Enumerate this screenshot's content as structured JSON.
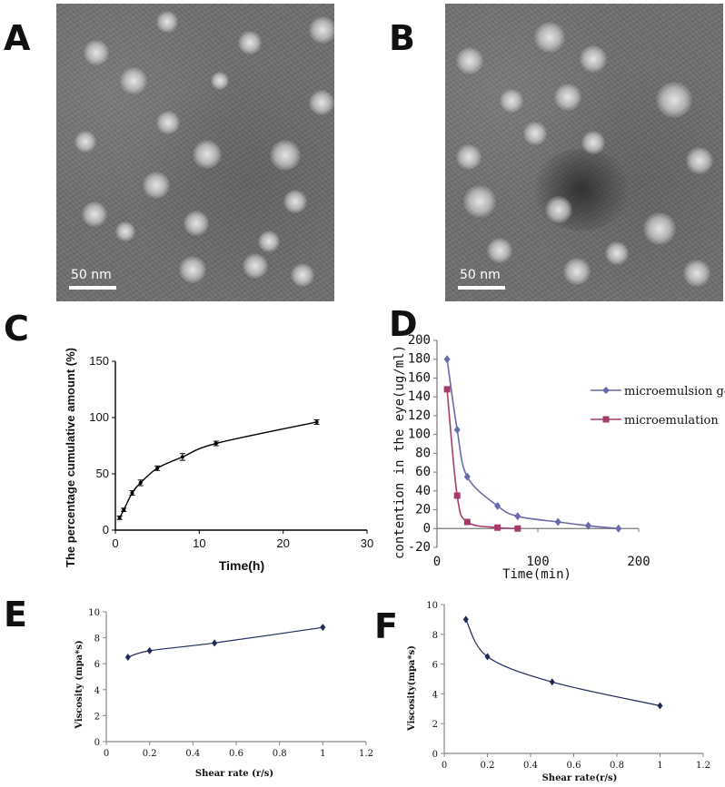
{
  "panels": {
    "a": {
      "letter": "A",
      "scale_bar": "50 nm"
    },
    "b": {
      "letter": "B",
      "scale_bar": "50 nm"
    },
    "c": {
      "letter": "C"
    },
    "d": {
      "letter": "D"
    },
    "e": {
      "letter": "E"
    },
    "f": {
      "letter": "F"
    }
  },
  "chart_data": [
    {
      "panel": "C",
      "type": "line",
      "xlabel": "Time(h)",
      "ylabel": "The percentage cumulative amount (%)",
      "xlim": [
        0,
        30
      ],
      "ylim": [
        0,
        150
      ],
      "xticks": [
        "0",
        "10",
        "20",
        "30"
      ],
      "yticks": [
        "0",
        "50",
        "100",
        "150"
      ],
      "color": "#000000",
      "series": [
        {
          "x": [
            0.5,
            1,
            2,
            3,
            5,
            8,
            12,
            24
          ],
          "y": [
            11,
            18,
            33,
            42,
            55,
            65,
            77,
            96
          ],
          "error": [
            1.5,
            1.5,
            2,
            2.5,
            2,
            3,
            2,
            2
          ]
        }
      ]
    },
    {
      "panel": "D",
      "type": "line",
      "xlabel": "Time(min)",
      "ylabel": "contention in the eye(ug/ml)",
      "xlim": [
        0,
        200
      ],
      "ylim": [
        -20,
        200
      ],
      "xticks": [
        "0",
        "100",
        "200"
      ],
      "yticks": [
        "-20",
        "0",
        "20",
        "40",
        "60",
        "80",
        "100",
        "120",
        "140",
        "160",
        "180",
        "200"
      ],
      "legend": "right",
      "series": [
        {
          "name": "microemulsion gel",
          "color": "#6a6aa8",
          "marker": "diamond",
          "x": [
            10,
            20,
            30,
            60,
            80,
            120,
            150,
            180
          ],
          "y": [
            180,
            105,
            55,
            24,
            13,
            7,
            3,
            0
          ]
        },
        {
          "name": "microemulation",
          "color": "#a83a6a",
          "marker": "square",
          "x": [
            10,
            20,
            30,
            60,
            80
          ],
          "y": [
            148,
            35,
            7,
            1,
            0
          ]
        }
      ]
    },
    {
      "panel": "E",
      "type": "line",
      "xlabel": "Shear rate (r/s)",
      "ylabel": "Viscosity (mpa*s)",
      "xlim": [
        0,
        1.2
      ],
      "ylim": [
        0,
        10
      ],
      "xticks": [
        "0",
        "0.2",
        "0.4",
        "0.6",
        "0.8",
        "1",
        "1.2"
      ],
      "yticks": [
        "0",
        "2",
        "4",
        "6",
        "8",
        "10"
      ],
      "color": "#1f2a5a",
      "series": [
        {
          "x": [
            0.1,
            0.2,
            0.5,
            1.0
          ],
          "y": [
            6.5,
            7.0,
            7.6,
            8.8
          ]
        }
      ]
    },
    {
      "panel": "F",
      "type": "line",
      "xlabel": "Shear rate(r/s)",
      "ylabel": "Viscosity(mpa*s)",
      "xlim": [
        0,
        1.2
      ],
      "ylim": [
        0,
        10
      ],
      "xticks": [
        "0",
        "0.2",
        "0.4",
        "0.6",
        "0.8",
        "1",
        "1.2"
      ],
      "yticks": [
        "0",
        "2",
        "4",
        "6",
        "8",
        "10"
      ],
      "color": "#1f2a5a",
      "series": [
        {
          "x": [
            0.1,
            0.2,
            0.5,
            1.0
          ],
          "y": [
            9.0,
            6.5,
            4.8,
            3.2
          ]
        }
      ]
    }
  ]
}
